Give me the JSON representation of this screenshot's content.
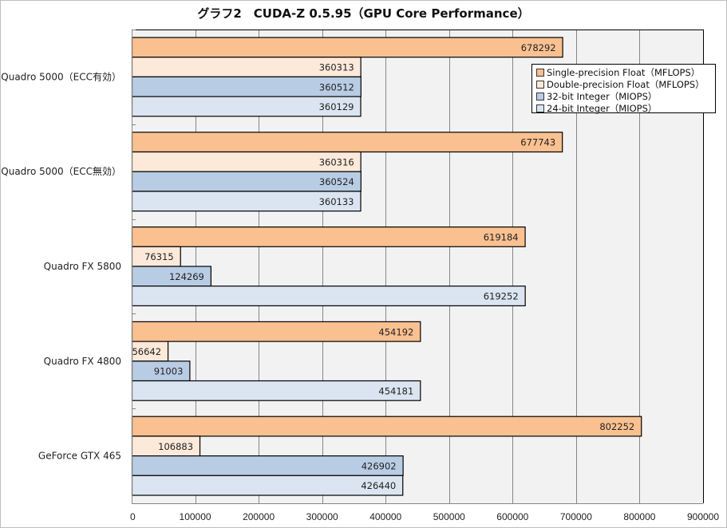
{
  "chart_data": {
    "type": "bar",
    "orientation": "horizontal",
    "title": "グラフ2　CUDA-Z 0.5.95（GPU Core Performance）",
    "xlabel": "",
    "ylabel": "",
    "xlim": [
      0,
      900000
    ],
    "x_ticks": [
      "0",
      "100000",
      "200000",
      "300000",
      "400000",
      "500000",
      "600000",
      "700000",
      "800000",
      "900000"
    ],
    "grid": true,
    "legend_position": "top-right",
    "categories": [
      "Quadro 5000（ECC有効）",
      "Quadro 5000（ECC無効）",
      "Quadro FX 5800",
      "Quadro FX 4800",
      "GeForce GTX 465"
    ],
    "series": [
      {
        "name": "Single-precision Float（MFLOPS）",
        "color": "#fac090",
        "values": [
          678292,
          677743,
          619184,
          454192,
          802252
        ]
      },
      {
        "name": "Double-precision Float（MFLOPS）",
        "color": "#fde9d9",
        "values": [
          360313,
          360316,
          76315,
          56642,
          106883
        ]
      },
      {
        "name": "32-bit Integer（MIOPS）",
        "color": "#b8cce4",
        "values": [
          360512,
          360524,
          124269,
          91003,
          426902
        ]
      },
      {
        "name": "24-bit Integer（MIOPS）",
        "color": "#dbe5f1",
        "values": [
          360129,
          360133,
          619252,
          454181,
          426440
        ]
      }
    ]
  }
}
